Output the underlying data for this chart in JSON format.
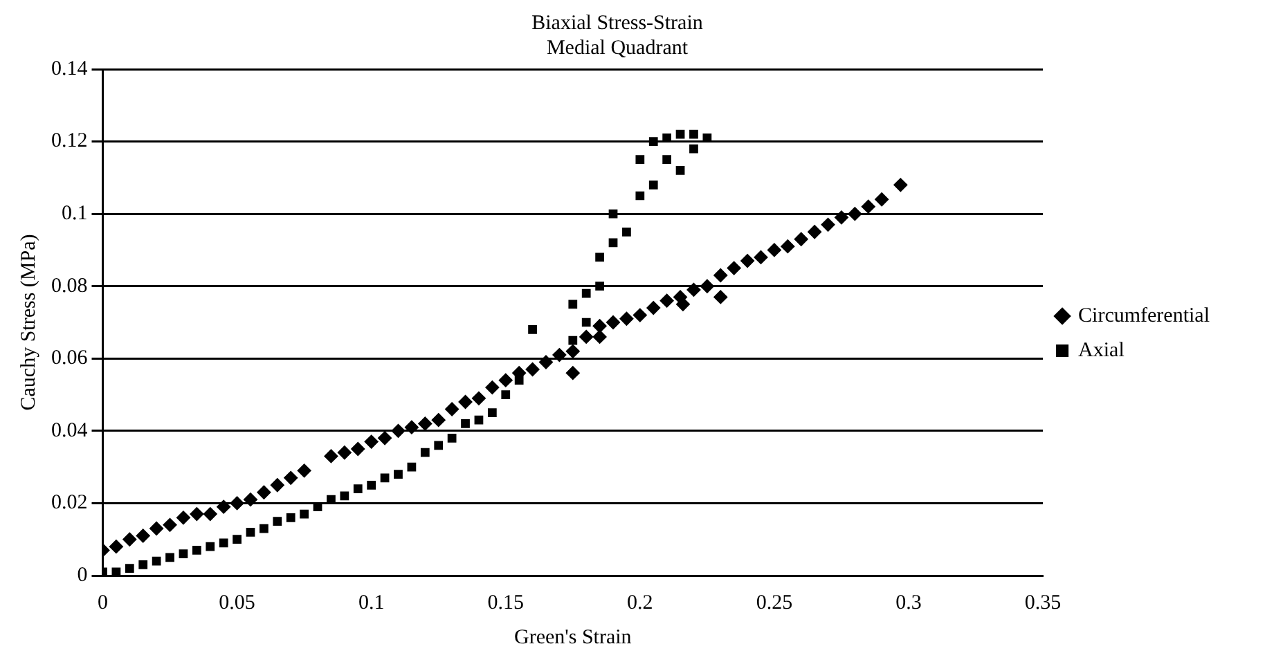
{
  "chart_data": {
    "type": "scatter",
    "title": "Biaxial Stress-Strain",
    "subtitle": "Medial Quadrant",
    "xlabel": "Green's Strain",
    "ylabel": "Cauchy Stress (MPa)",
    "xlim": [
      0,
      0.35
    ],
    "xticks": [
      0,
      0.05,
      0.1,
      0.15,
      0.2,
      0.25,
      0.3,
      0.35
    ],
    "ylim": [
      0,
      0.14
    ],
    "yticks": [
      0,
      0.02,
      0.04,
      0.06,
      0.08,
      0.1,
      0.12,
      0.14
    ],
    "grid": "y",
    "legend": "right",
    "series": [
      {
        "name": "Circumferential",
        "color": "#000000",
        "marker": "diamond",
        "x": [
          0,
          0.005,
          0.01,
          0.015,
          0.02,
          0.025,
          0.03,
          0.035,
          0.04,
          0.045,
          0.05,
          0.055,
          0.06,
          0.065,
          0.07,
          0.075,
          0.085,
          0.09,
          0.095,
          0.1,
          0.105,
          0.11,
          0.115,
          0.12,
          0.125,
          0.13,
          0.135,
          0.14,
          0.145,
          0.15,
          0.155,
          0.16,
          0.165,
          0.17,
          0.175,
          0.18,
          0.185,
          0.19,
          0.195,
          0.2,
          0.205,
          0.21,
          0.215,
          0.22,
          0.225,
          0.23,
          0.235,
          0.24,
          0.245,
          0.25,
          0.255,
          0.26,
          0.265,
          0.27,
          0.275,
          0.28,
          0.285,
          0.29,
          0.297,
          0.216,
          0.23,
          0.175,
          0.185
        ],
        "values": [
          0.007,
          0.008,
          0.01,
          0.011,
          0.013,
          0.014,
          0.016,
          0.017,
          0.017,
          0.019,
          0.02,
          0.021,
          0.023,
          0.025,
          0.027,
          0.029,
          0.033,
          0.034,
          0.035,
          0.037,
          0.038,
          0.04,
          0.041,
          0.042,
          0.043,
          0.046,
          0.048,
          0.049,
          0.052,
          0.054,
          0.056,
          0.057,
          0.059,
          0.061,
          0.062,
          0.066,
          0.069,
          0.07,
          0.071,
          0.072,
          0.074,
          0.076,
          0.077,
          0.079,
          0.08,
          0.083,
          0.085,
          0.087,
          0.088,
          0.09,
          0.091,
          0.093,
          0.095,
          0.097,
          0.099,
          0.1,
          0.102,
          0.104,
          0.108,
          0.075,
          0.077,
          0.056,
          0.066
        ]
      },
      {
        "name": "Axial",
        "color": "#000000",
        "marker": "square",
        "x": [
          0,
          0.005,
          0.01,
          0.015,
          0.02,
          0.025,
          0.03,
          0.035,
          0.04,
          0.045,
          0.05,
          0.055,
          0.06,
          0.065,
          0.07,
          0.075,
          0.08,
          0.085,
          0.09,
          0.095,
          0.1,
          0.105,
          0.11,
          0.115,
          0.12,
          0.125,
          0.13,
          0.135,
          0.14,
          0.145,
          0.15,
          0.155,
          0.16,
          0.175,
          0.175,
          0.18,
          0.18,
          0.185,
          0.185,
          0.19,
          0.19,
          0.195,
          0.2,
          0.2,
          0.205,
          0.205,
          0.21,
          0.21,
          0.215,
          0.215,
          0.22,
          0.22,
          0.225
        ],
        "values": [
          0.001,
          0.001,
          0.002,
          0.003,
          0.004,
          0.005,
          0.006,
          0.007,
          0.008,
          0.009,
          0.01,
          0.012,
          0.013,
          0.015,
          0.016,
          0.017,
          0.019,
          0.021,
          0.022,
          0.024,
          0.025,
          0.027,
          0.028,
          0.03,
          0.034,
          0.036,
          0.038,
          0.042,
          0.043,
          0.045,
          0.05,
          0.054,
          0.068,
          0.065,
          0.075,
          0.078,
          0.07,
          0.08,
          0.088,
          0.092,
          0.1,
          0.095,
          0.105,
          0.115,
          0.108,
          0.12,
          0.115,
          0.121,
          0.112,
          0.122,
          0.118,
          0.122,
          0.121
        ]
      }
    ]
  }
}
